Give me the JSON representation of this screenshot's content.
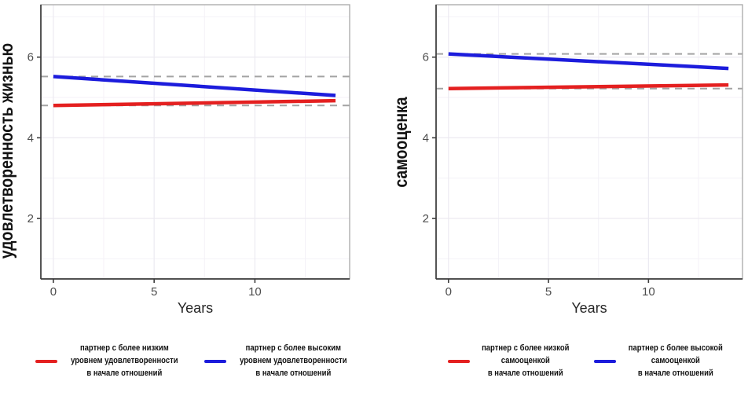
{
  "figure": {
    "background": "#ffffff",
    "axis_color": "#3c3c3c",
    "panel_border_color": "#a8a8a8",
    "grid_major_color": "#eceaf1",
    "grid_minor_color": "#f4f2f7",
    "tick_label_color": "#4d4d4d",
    "axis_title_color": "#262626",
    "y_title_color": "#141414",
    "ref_line_color": "#a3a3a3"
  },
  "chart_data": [
    {
      "type": "line",
      "title": "",
      "xlabel": "Years",
      "ylabel": "удовлетворенность жизнью",
      "xlim": [
        -0.62,
        14.7
      ],
      "ylim": [
        0.5,
        7.3
      ],
      "xticks": [
        {
          "value": 0,
          "label": "0"
        },
        {
          "value": 5,
          "label": "5"
        },
        {
          "value": 10,
          "label": "10"
        }
      ],
      "yticks": [
        {
          "value": 2,
          "label": "2"
        },
        {
          "value": 4,
          "label": "4"
        },
        {
          "value": 6,
          "label": "6"
        }
      ],
      "grid": {
        "major_x": [
          0,
          5,
          10
        ],
        "minor_x": [
          2.5,
          7.5,
          12.5
        ],
        "major_y": [
          2,
          4,
          6
        ],
        "minor_y": [
          1,
          3,
          5,
          7
        ]
      },
      "legend_position": "bottom",
      "ref_lines": [
        {
          "y": 5.52,
          "style": "dashed",
          "color": "#a3a3a3"
        },
        {
          "y": 4.8,
          "style": "dashed",
          "color": "#a3a3a3"
        }
      ],
      "series": [
        {
          "name": "партнер с более низким уровнем удовлетворенности в начале отношений",
          "legend_lines": [
            "партнер с более низким",
            "уровнем удовлетворенности",
            "в начале отношений"
          ],
          "color": "#e42020",
          "x": [
            0,
            14
          ],
          "y": [
            4.8,
            4.92
          ]
        },
        {
          "name": "партнер с более высоким уровнем удовлетворенности в начале отношений",
          "legend_lines": [
            "партнер с более высоким",
            "уровнем удовлетворенности",
            "в начале отношений"
          ],
          "color": "#1c1cdc",
          "x": [
            0,
            14
          ],
          "y": [
            5.52,
            5.05
          ]
        }
      ]
    },
    {
      "type": "line",
      "title": "",
      "xlabel": "Years",
      "ylabel": "самооценка",
      "xlim": [
        -0.62,
        14.7
      ],
      "ylim": [
        0.5,
        7.3
      ],
      "xticks": [
        {
          "value": 0,
          "label": "0"
        },
        {
          "value": 5,
          "label": "5"
        },
        {
          "value": 10,
          "label": "10"
        }
      ],
      "yticks": [
        {
          "value": 2,
          "label": "2"
        },
        {
          "value": 4,
          "label": "4"
        },
        {
          "value": 6,
          "label": "6"
        }
      ],
      "grid": {
        "major_x": [
          0,
          5,
          10
        ],
        "minor_x": [
          2.5,
          7.5,
          12.5
        ],
        "major_y": [
          2,
          4,
          6
        ],
        "minor_y": [
          1,
          3,
          5,
          7
        ]
      },
      "legend_position": "bottom",
      "ref_lines": [
        {
          "y": 6.08,
          "style": "dashed",
          "color": "#a3a3a3"
        },
        {
          "y": 5.22,
          "style": "dashed",
          "color": "#a3a3a3"
        }
      ],
      "series": [
        {
          "name": "партнер с более низкой самооценкой в начале отношений",
          "legend_lines": [
            "партнер с более низкой",
            "самооценкой",
            "в начале отношений"
          ],
          "color": "#e42020",
          "x": [
            0,
            14
          ],
          "y": [
            5.22,
            5.31
          ]
        },
        {
          "name": "партнер с более высокой самооценкой в начале отношений",
          "legend_lines": [
            "партнер с более высокой",
            "самооценкой",
            "в начале отношений"
          ],
          "color": "#1c1cdc",
          "x": [
            0,
            14
          ],
          "y": [
            6.08,
            5.72
          ]
        }
      ]
    }
  ]
}
